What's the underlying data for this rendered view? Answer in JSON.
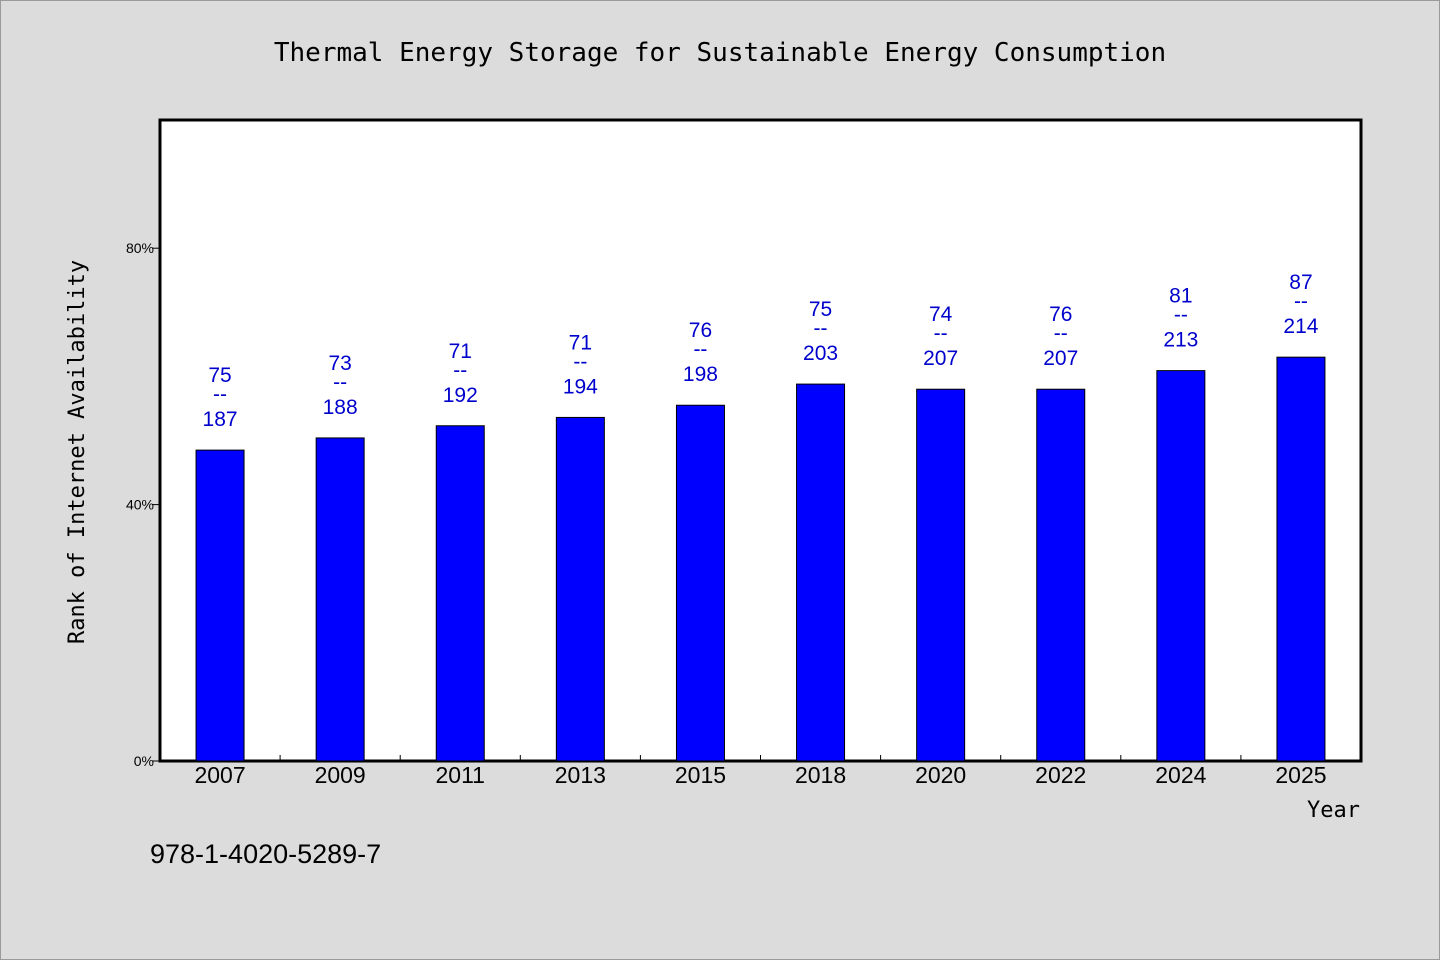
{
  "chart_data": {
    "type": "bar",
    "title": "Thermal Energy Storage for Sustainable Energy Consumption",
    "xlabel": "Year",
    "ylabel": "Rank of Internet Availability",
    "ylim": [
      0,
      100
    ],
    "yticks": [
      {
        "value": 0,
        "label": "0%"
      },
      {
        "value": 40,
        "label": "40%"
      },
      {
        "value": 80,
        "label": "80%"
      }
    ],
    "grid": false,
    "bar_color": "#0000ff",
    "label_color": "#0000cc",
    "categories": [
      "2007",
      "2009",
      "2011",
      "2013",
      "2015",
      "2018",
      "2020",
      "2022",
      "2024",
      "2025"
    ],
    "values": [
      48.5,
      50.4,
      52.3,
      53.6,
      55.5,
      58.8,
      58.0,
      58.0,
      60.9,
      63.0
    ],
    "labels": [
      {
        "top": "75",
        "sep": "--",
        "bottom": "187"
      },
      {
        "top": "73",
        "sep": "--",
        "bottom": "188"
      },
      {
        "top": "71",
        "sep": "--",
        "bottom": "192"
      },
      {
        "top": "71",
        "sep": "--",
        "bottom": "194"
      },
      {
        "top": "76",
        "sep": "--",
        "bottom": "198"
      },
      {
        "top": "75",
        "sep": "--",
        "bottom": "203"
      },
      {
        "top": "74",
        "sep": "--",
        "bottom": "207"
      },
      {
        "top": "76",
        "sep": "--",
        "bottom": "207"
      },
      {
        "top": "81",
        "sep": "--",
        "bottom": "213"
      },
      {
        "top": "87",
        "sep": "--",
        "bottom": "214"
      }
    ]
  },
  "footer": {
    "isbn": "978-1-4020-5289-7"
  }
}
